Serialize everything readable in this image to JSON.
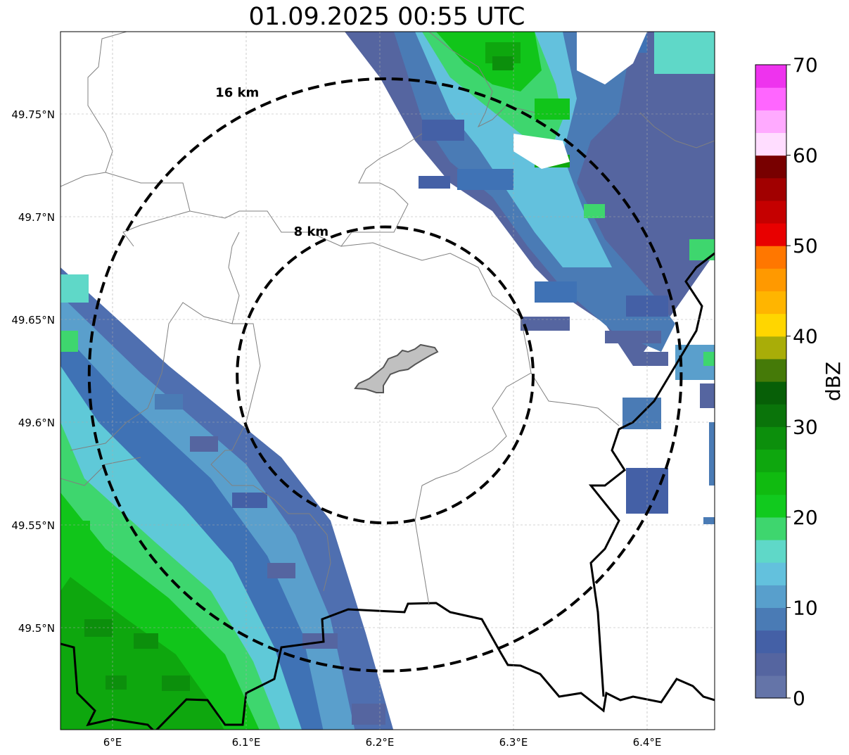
{
  "title": "01.09.2025 00:55 UTC",
  "map": {
    "lon_range": [
      5.96,
      6.45
    ],
    "lat_range": [
      49.45,
      49.79
    ],
    "lat_ticks": [
      {
        "value": 49.75,
        "label": "49.75°N"
      },
      {
        "value": 49.7,
        "label": "49.7°N"
      },
      {
        "value": 49.65,
        "label": "49.65°N"
      },
      {
        "value": 49.6,
        "label": "49.6°N"
      },
      {
        "value": 49.55,
        "label": "49.55°N"
      },
      {
        "value": 49.5,
        "label": "49.5°N"
      }
    ],
    "lon_ticks": [
      {
        "value": 6.0,
        "label": "6°E"
      },
      {
        "value": 6.1,
        "label": "6.1°E"
      },
      {
        "value": 6.2,
        "label": "6.2°E"
      },
      {
        "value": 6.3,
        "label": "6.3°E"
      },
      {
        "value": 6.4,
        "label": "6.4°E"
      }
    ],
    "gridlines": true,
    "center": {
      "lon": 6.204,
      "lat": 49.623
    },
    "rings": [
      {
        "radius_km": 8,
        "label": "8 km"
      },
      {
        "radius_km": 16,
        "label": "16 km"
      }
    ]
  },
  "colorbar": {
    "label": "dBZ",
    "min": 0,
    "max": 70,
    "ticks": [
      {
        "value": 0,
        "label": "0"
      },
      {
        "value": 10,
        "label": "10"
      },
      {
        "value": 20,
        "label": "20"
      },
      {
        "value": 30,
        "label": "30"
      },
      {
        "value": 40,
        "label": "40"
      },
      {
        "value": 50,
        "label": "50"
      },
      {
        "value": 60,
        "label": "60"
      },
      {
        "value": 70,
        "label": "70"
      }
    ],
    "colors": [
      "#6474a8",
      "#5565a0",
      "#4460a6",
      "#4a7bb5",
      "#589fcc",
      "#63c1dd",
      "#5fd8c8",
      "#3ed66e",
      "#11ca1e",
      "#10bb10",
      "#0ea70e",
      "#0c8f0c",
      "#0a740a",
      "#075f07",
      "#457a08",
      "#a9ad08",
      "#ffd600",
      "#ffb500",
      "#ff9900",
      "#ff7700",
      "#e80000",
      "#c50000",
      "#a10000",
      "#780000",
      "#ffddff",
      "#ffaaff",
      "#ff66ff",
      "#ee33ee"
    ]
  }
}
